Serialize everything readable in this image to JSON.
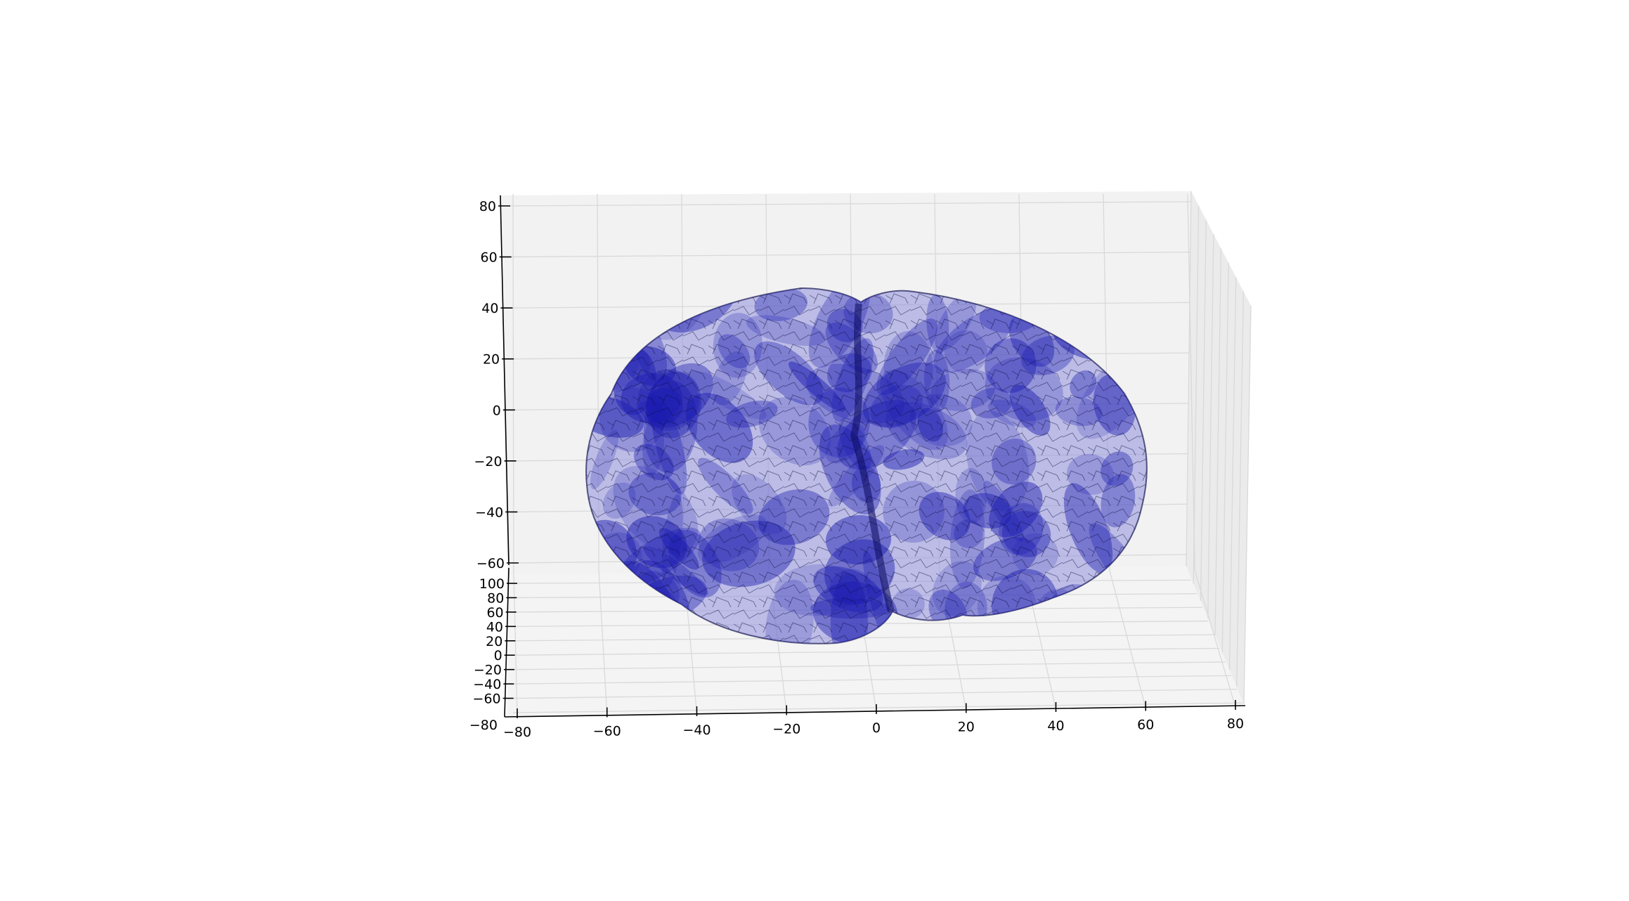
{
  "chart_data": {
    "type": "surface3d",
    "title": "",
    "xlabel": "",
    "ylabel": "",
    "zlabel": "",
    "xlim": [
      -80,
      80
    ],
    "ylim": [
      -80,
      100
    ],
    "zlim": [
      -60,
      80
    ],
    "x_ticks": [
      "−80",
      "−60",
      "−40",
      "−20",
      "0",
      "20",
      "40",
      "60",
      "80"
    ],
    "y_ticks": [
      "−80",
      "−60",
      "−40",
      "−20",
      "0",
      "20",
      "40",
      "60",
      "80",
      "100"
    ],
    "z_ticks": [
      "−60",
      "−40",
      "−20",
      "0",
      "20",
      "40",
      "60",
      "80"
    ],
    "grid": true,
    "view": "posterior (coronal) view, slight elevation",
    "mesh": {
      "name": "brain surface mesh",
      "face_color": "#1a1ab0",
      "edge_color": "#000000",
      "face_alpha": 0.2
    },
    "colors": {
      "pane": "#f2f2f2",
      "grid": "#d9d9d9",
      "axis": "#000000"
    }
  }
}
